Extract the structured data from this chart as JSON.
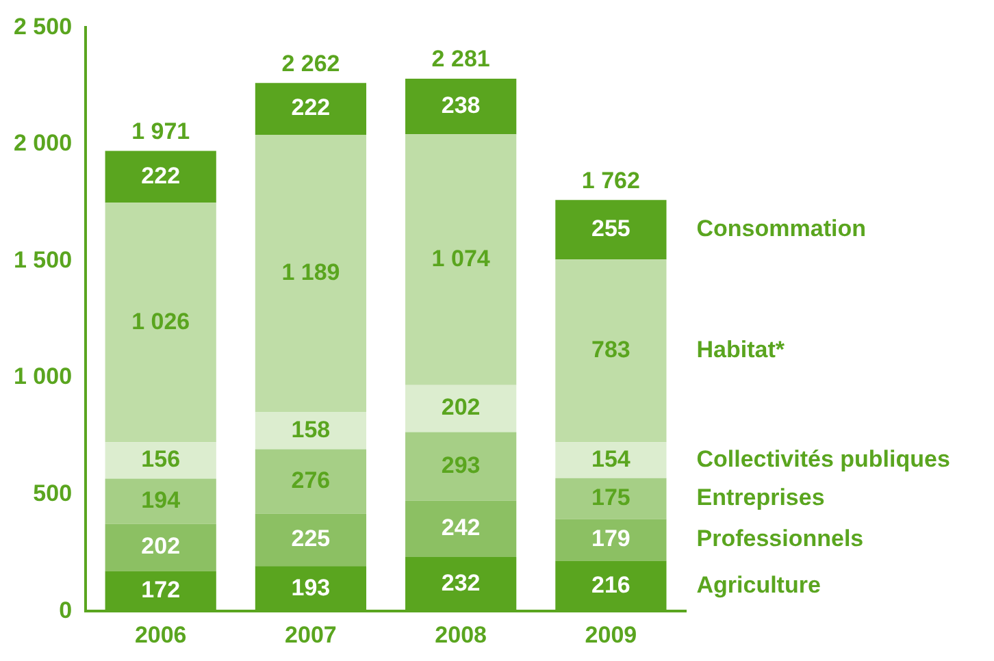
{
  "chart_data": {
    "type": "bar",
    "stacked": true,
    "categories": [
      "2006",
      "2007",
      "2008",
      "2009"
    ],
    "series": [
      {
        "name": "Agriculture",
        "color": "#5aa51f",
        "values": [
          172,
          193,
          232,
          216
        ]
      },
      {
        "name": "Professionnels",
        "color": "#8cc063",
        "values": [
          202,
          225,
          242,
          179
        ]
      },
      {
        "name": "Entreprises",
        "color": "#a6cf86",
        "values": [
          194,
          276,
          293,
          175
        ]
      },
      {
        "name": "Collectivités publiques",
        "color": "#dcedcf",
        "values": [
          156,
          158,
          202,
          154
        ]
      },
      {
        "name": "Habitat*",
        "color": "#bfdda7",
        "values": [
          1026,
          1189,
          1074,
          783
        ],
        "value_labels": [
          "1 026",
          "1 189",
          "1 074",
          "783"
        ]
      },
      {
        "name": "Consommation",
        "color": "#5aa51f",
        "values": [
          222,
          222,
          238,
          255
        ]
      }
    ],
    "totals": [
      "1 971",
      "2 262",
      "2 281",
      "1 762"
    ],
    "ylim": [
      0,
      2500
    ],
    "yticks": [
      {
        "value": 0,
        "label": "0"
      },
      {
        "value": 500,
        "label": "500"
      },
      {
        "value": 1000,
        "label": "1 000"
      },
      {
        "value": 1500,
        "label": "1 500"
      },
      {
        "value": 2000,
        "label": "2 000"
      },
      {
        "value": 2500,
        "label": "2 500"
      }
    ],
    "grid": false,
    "data_labels": true
  }
}
